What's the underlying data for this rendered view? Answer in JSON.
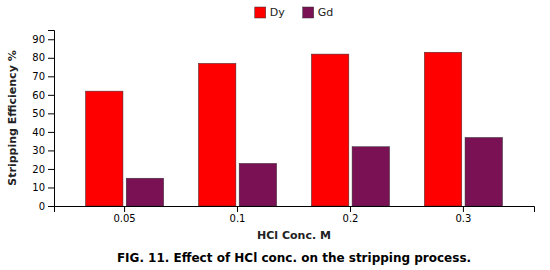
{
  "chart_data": {
    "type": "bar",
    "title": "FIG. 11. Effect of HCl conc. on the stripping process.",
    "xlabel": "HCl Conc. M",
    "ylabel": "Stripping Efficiency %",
    "categories": [
      "0.05",
      "0.1",
      "0.2",
      "0.3"
    ],
    "series": [
      {
        "name": "Dy",
        "color": "#FF0000",
        "values": [
          62,
          77,
          82,
          83
        ]
      },
      {
        "name": "Gd",
        "color": "#7B1155",
        "values": [
          15,
          23,
          32,
          37
        ]
      }
    ],
    "ylim": [
      0,
      95
    ],
    "yticks": [
      0,
      10,
      20,
      30,
      40,
      50,
      60,
      70,
      80,
      90
    ],
    "grid": false,
    "legend": "top"
  }
}
